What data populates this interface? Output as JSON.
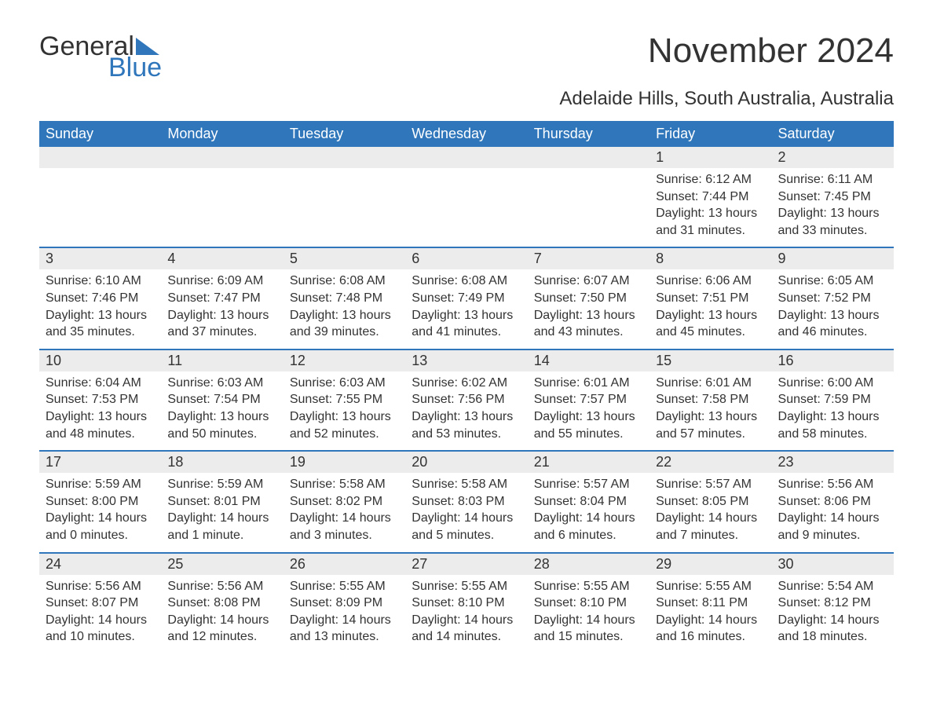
{
  "brand": {
    "word1": "General",
    "word2": "Blue",
    "accent": "#2f76bb"
  },
  "title": "November 2024",
  "subtitle": "Adelaide Hills, South Australia, Australia",
  "header_bg": "#2f76bb",
  "header_fg": "#ffffff",
  "band_bg": "#ececec",
  "text_color": "#333333",
  "page_bg": "#ffffff",
  "week_border_color": "#2f76bb",
  "fonts": {
    "title_pt": 44,
    "subtitle_pt": 24,
    "dayhdr_pt": 18,
    "daynum_pt": 18,
    "body_pt": 16
  },
  "day_names": [
    "Sunday",
    "Monday",
    "Tuesday",
    "Wednesday",
    "Thursday",
    "Friday",
    "Saturday"
  ],
  "weeks": [
    [
      null,
      null,
      null,
      null,
      null,
      {
        "n": "1",
        "sunrise": "Sunrise: 6:12 AM",
        "sunset": "Sunset: 7:44 PM",
        "daylight": "Daylight: 13 hours and 31 minutes."
      },
      {
        "n": "2",
        "sunrise": "Sunrise: 6:11 AM",
        "sunset": "Sunset: 7:45 PM",
        "daylight": "Daylight: 13 hours and 33 minutes."
      }
    ],
    [
      {
        "n": "3",
        "sunrise": "Sunrise: 6:10 AM",
        "sunset": "Sunset: 7:46 PM",
        "daylight": "Daylight: 13 hours and 35 minutes."
      },
      {
        "n": "4",
        "sunrise": "Sunrise: 6:09 AM",
        "sunset": "Sunset: 7:47 PM",
        "daylight": "Daylight: 13 hours and 37 minutes."
      },
      {
        "n": "5",
        "sunrise": "Sunrise: 6:08 AM",
        "sunset": "Sunset: 7:48 PM",
        "daylight": "Daylight: 13 hours and 39 minutes."
      },
      {
        "n": "6",
        "sunrise": "Sunrise: 6:08 AM",
        "sunset": "Sunset: 7:49 PM",
        "daylight": "Daylight: 13 hours and 41 minutes."
      },
      {
        "n": "7",
        "sunrise": "Sunrise: 6:07 AM",
        "sunset": "Sunset: 7:50 PM",
        "daylight": "Daylight: 13 hours and 43 minutes."
      },
      {
        "n": "8",
        "sunrise": "Sunrise: 6:06 AM",
        "sunset": "Sunset: 7:51 PM",
        "daylight": "Daylight: 13 hours and 45 minutes."
      },
      {
        "n": "9",
        "sunrise": "Sunrise: 6:05 AM",
        "sunset": "Sunset: 7:52 PM",
        "daylight": "Daylight: 13 hours and 46 minutes."
      }
    ],
    [
      {
        "n": "10",
        "sunrise": "Sunrise: 6:04 AM",
        "sunset": "Sunset: 7:53 PM",
        "daylight": "Daylight: 13 hours and 48 minutes."
      },
      {
        "n": "11",
        "sunrise": "Sunrise: 6:03 AM",
        "sunset": "Sunset: 7:54 PM",
        "daylight": "Daylight: 13 hours and 50 minutes."
      },
      {
        "n": "12",
        "sunrise": "Sunrise: 6:03 AM",
        "sunset": "Sunset: 7:55 PM",
        "daylight": "Daylight: 13 hours and 52 minutes."
      },
      {
        "n": "13",
        "sunrise": "Sunrise: 6:02 AM",
        "sunset": "Sunset: 7:56 PM",
        "daylight": "Daylight: 13 hours and 53 minutes."
      },
      {
        "n": "14",
        "sunrise": "Sunrise: 6:01 AM",
        "sunset": "Sunset: 7:57 PM",
        "daylight": "Daylight: 13 hours and 55 minutes."
      },
      {
        "n": "15",
        "sunrise": "Sunrise: 6:01 AM",
        "sunset": "Sunset: 7:58 PM",
        "daylight": "Daylight: 13 hours and 57 minutes."
      },
      {
        "n": "16",
        "sunrise": "Sunrise: 6:00 AM",
        "sunset": "Sunset: 7:59 PM",
        "daylight": "Daylight: 13 hours and 58 minutes."
      }
    ],
    [
      {
        "n": "17",
        "sunrise": "Sunrise: 5:59 AM",
        "sunset": "Sunset: 8:00 PM",
        "daylight": "Daylight: 14 hours and 0 minutes."
      },
      {
        "n": "18",
        "sunrise": "Sunrise: 5:59 AM",
        "sunset": "Sunset: 8:01 PM",
        "daylight": "Daylight: 14 hours and 1 minute."
      },
      {
        "n": "19",
        "sunrise": "Sunrise: 5:58 AM",
        "sunset": "Sunset: 8:02 PM",
        "daylight": "Daylight: 14 hours and 3 minutes."
      },
      {
        "n": "20",
        "sunrise": "Sunrise: 5:58 AM",
        "sunset": "Sunset: 8:03 PM",
        "daylight": "Daylight: 14 hours and 5 minutes."
      },
      {
        "n": "21",
        "sunrise": "Sunrise: 5:57 AM",
        "sunset": "Sunset: 8:04 PM",
        "daylight": "Daylight: 14 hours and 6 minutes."
      },
      {
        "n": "22",
        "sunrise": "Sunrise: 5:57 AM",
        "sunset": "Sunset: 8:05 PM",
        "daylight": "Daylight: 14 hours and 7 minutes."
      },
      {
        "n": "23",
        "sunrise": "Sunrise: 5:56 AM",
        "sunset": "Sunset: 8:06 PM",
        "daylight": "Daylight: 14 hours and 9 minutes."
      }
    ],
    [
      {
        "n": "24",
        "sunrise": "Sunrise: 5:56 AM",
        "sunset": "Sunset: 8:07 PM",
        "daylight": "Daylight: 14 hours and 10 minutes."
      },
      {
        "n": "25",
        "sunrise": "Sunrise: 5:56 AM",
        "sunset": "Sunset: 8:08 PM",
        "daylight": "Daylight: 14 hours and 12 minutes."
      },
      {
        "n": "26",
        "sunrise": "Sunrise: 5:55 AM",
        "sunset": "Sunset: 8:09 PM",
        "daylight": "Daylight: 14 hours and 13 minutes."
      },
      {
        "n": "27",
        "sunrise": "Sunrise: 5:55 AM",
        "sunset": "Sunset: 8:10 PM",
        "daylight": "Daylight: 14 hours and 14 minutes."
      },
      {
        "n": "28",
        "sunrise": "Sunrise: 5:55 AM",
        "sunset": "Sunset: 8:10 PM",
        "daylight": "Daylight: 14 hours and 15 minutes."
      },
      {
        "n": "29",
        "sunrise": "Sunrise: 5:55 AM",
        "sunset": "Sunset: 8:11 PM",
        "daylight": "Daylight: 14 hours and 16 minutes."
      },
      {
        "n": "30",
        "sunrise": "Sunrise: 5:54 AM",
        "sunset": "Sunset: 8:12 PM",
        "daylight": "Daylight: 14 hours and 18 minutes."
      }
    ]
  ]
}
